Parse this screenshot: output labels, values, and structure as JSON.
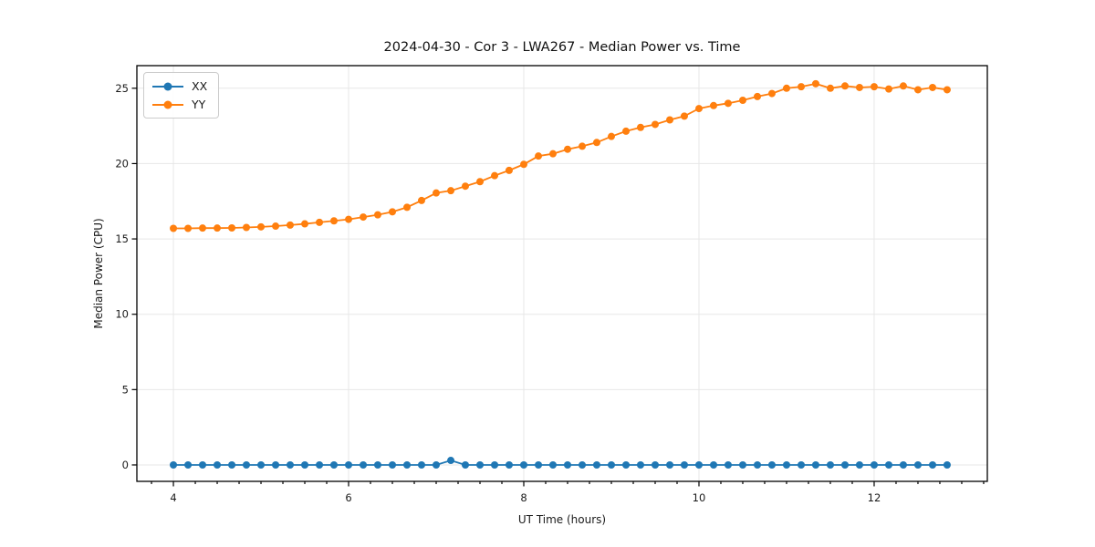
{
  "chart_data": {
    "type": "line",
    "title": "2024-04-30 - Cor 3 - LWA267 - Median Power vs. Time",
    "xlabel": "UT Time (hours)",
    "ylabel": "Median Power (CPU)",
    "xlim": [
      3.583,
      13.292
    ],
    "ylim": [
      -1.09,
      26.5
    ],
    "x_major_ticks": [
      4,
      6,
      8,
      10,
      12
    ],
    "x_minor_tick_step": 0.25,
    "y_major_ticks": [
      0,
      5,
      10,
      15,
      20,
      25
    ],
    "grid": true,
    "grid_color": "#e7e7e7",
    "legend_position": "upper-left",
    "x": [
      4.0,
      4.167,
      4.333,
      4.5,
      4.667,
      4.833,
      5.0,
      5.167,
      5.333,
      5.5,
      5.667,
      5.833,
      6.0,
      6.167,
      6.333,
      6.5,
      6.667,
      6.833,
      7.0,
      7.167,
      7.333,
      7.5,
      7.667,
      7.833,
      8.0,
      8.167,
      8.333,
      8.5,
      8.667,
      8.833,
      9.0,
      9.167,
      9.333,
      9.5,
      9.667,
      9.833,
      10.0,
      10.167,
      10.333,
      10.5,
      10.667,
      10.833,
      11.0,
      11.167,
      11.333,
      11.5,
      11.667,
      11.833,
      12.0,
      12.167,
      12.333,
      12.5,
      12.667,
      12.833
    ],
    "series": [
      {
        "name": "XX",
        "color": "#1f77b4",
        "values": [
          0,
          0,
          0,
          0,
          0,
          0,
          0,
          0,
          0,
          0,
          0,
          0,
          0,
          0,
          0,
          0,
          0,
          0,
          0,
          0.3,
          0,
          0,
          0,
          0,
          0,
          0,
          0,
          0,
          0,
          0,
          0,
          0,
          0,
          0,
          0,
          0,
          0,
          0,
          0,
          0,
          0,
          0,
          0,
          0,
          0,
          0,
          0,
          0,
          0,
          0,
          0,
          0,
          0,
          0
        ]
      },
      {
        "name": "YY",
        "color": "#ff7f0e",
        "values": [
          15.7,
          15.7,
          15.72,
          15.72,
          15.73,
          15.76,
          15.8,
          15.85,
          15.92,
          16.0,
          16.1,
          16.2,
          16.3,
          16.45,
          16.6,
          16.8,
          17.1,
          17.55,
          18.05,
          18.2,
          18.5,
          18.8,
          19.2,
          19.55,
          19.95,
          20.5,
          20.65,
          20.95,
          21.15,
          21.4,
          21.8,
          22.15,
          22.4,
          22.6,
          22.9,
          23.15,
          23.65,
          23.85,
          24.0,
          24.2,
          24.45,
          24.65,
          25.0,
          25.1,
          25.3,
          25.0,
          25.15,
          25.05,
          25.1,
          24.95,
          25.15,
          24.9,
          25.05,
          24.9
        ]
      }
    ]
  }
}
